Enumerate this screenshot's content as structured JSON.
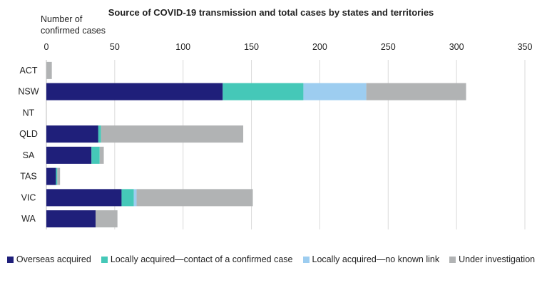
{
  "chart_data": {
    "type": "bar",
    "orientation": "horizontal",
    "stacked": true,
    "title": "Source of COVID-19 transmission and total cases by states and territories",
    "ylabel": "Number of confirmed cases",
    "xlabel": "",
    "xlim": [
      0,
      350
    ],
    "xticks": [
      0,
      50,
      100,
      150,
      200,
      250,
      300,
      350
    ],
    "categories": [
      "ACT",
      "NSW",
      "NT",
      "QLD",
      "SA",
      "TAS",
      "VIC",
      "WA"
    ],
    "series": [
      {
        "name": "Overseas acquired",
        "color": "#1f1f7a",
        "values": [
          0,
          129,
          0,
          38,
          33,
          7,
          55,
          36
        ]
      },
      {
        "name": "Locally acquired—contact of a confirmed case",
        "color": "#45c8b8",
        "values": [
          0,
          59,
          0,
          2,
          6,
          1,
          9,
          0
        ]
      },
      {
        "name": "Locally acquired—no known link",
        "color": "#9dcdf0",
        "values": [
          0,
          46,
          0,
          0,
          0,
          0,
          2,
          0
        ]
      },
      {
        "name": "Under investigation",
        "color": "#b1b3b4",
        "values": [
          4,
          73,
          0,
          104,
          3,
          2,
          85,
          16
        ]
      }
    ],
    "legend_position": "bottom",
    "grid": true
  }
}
